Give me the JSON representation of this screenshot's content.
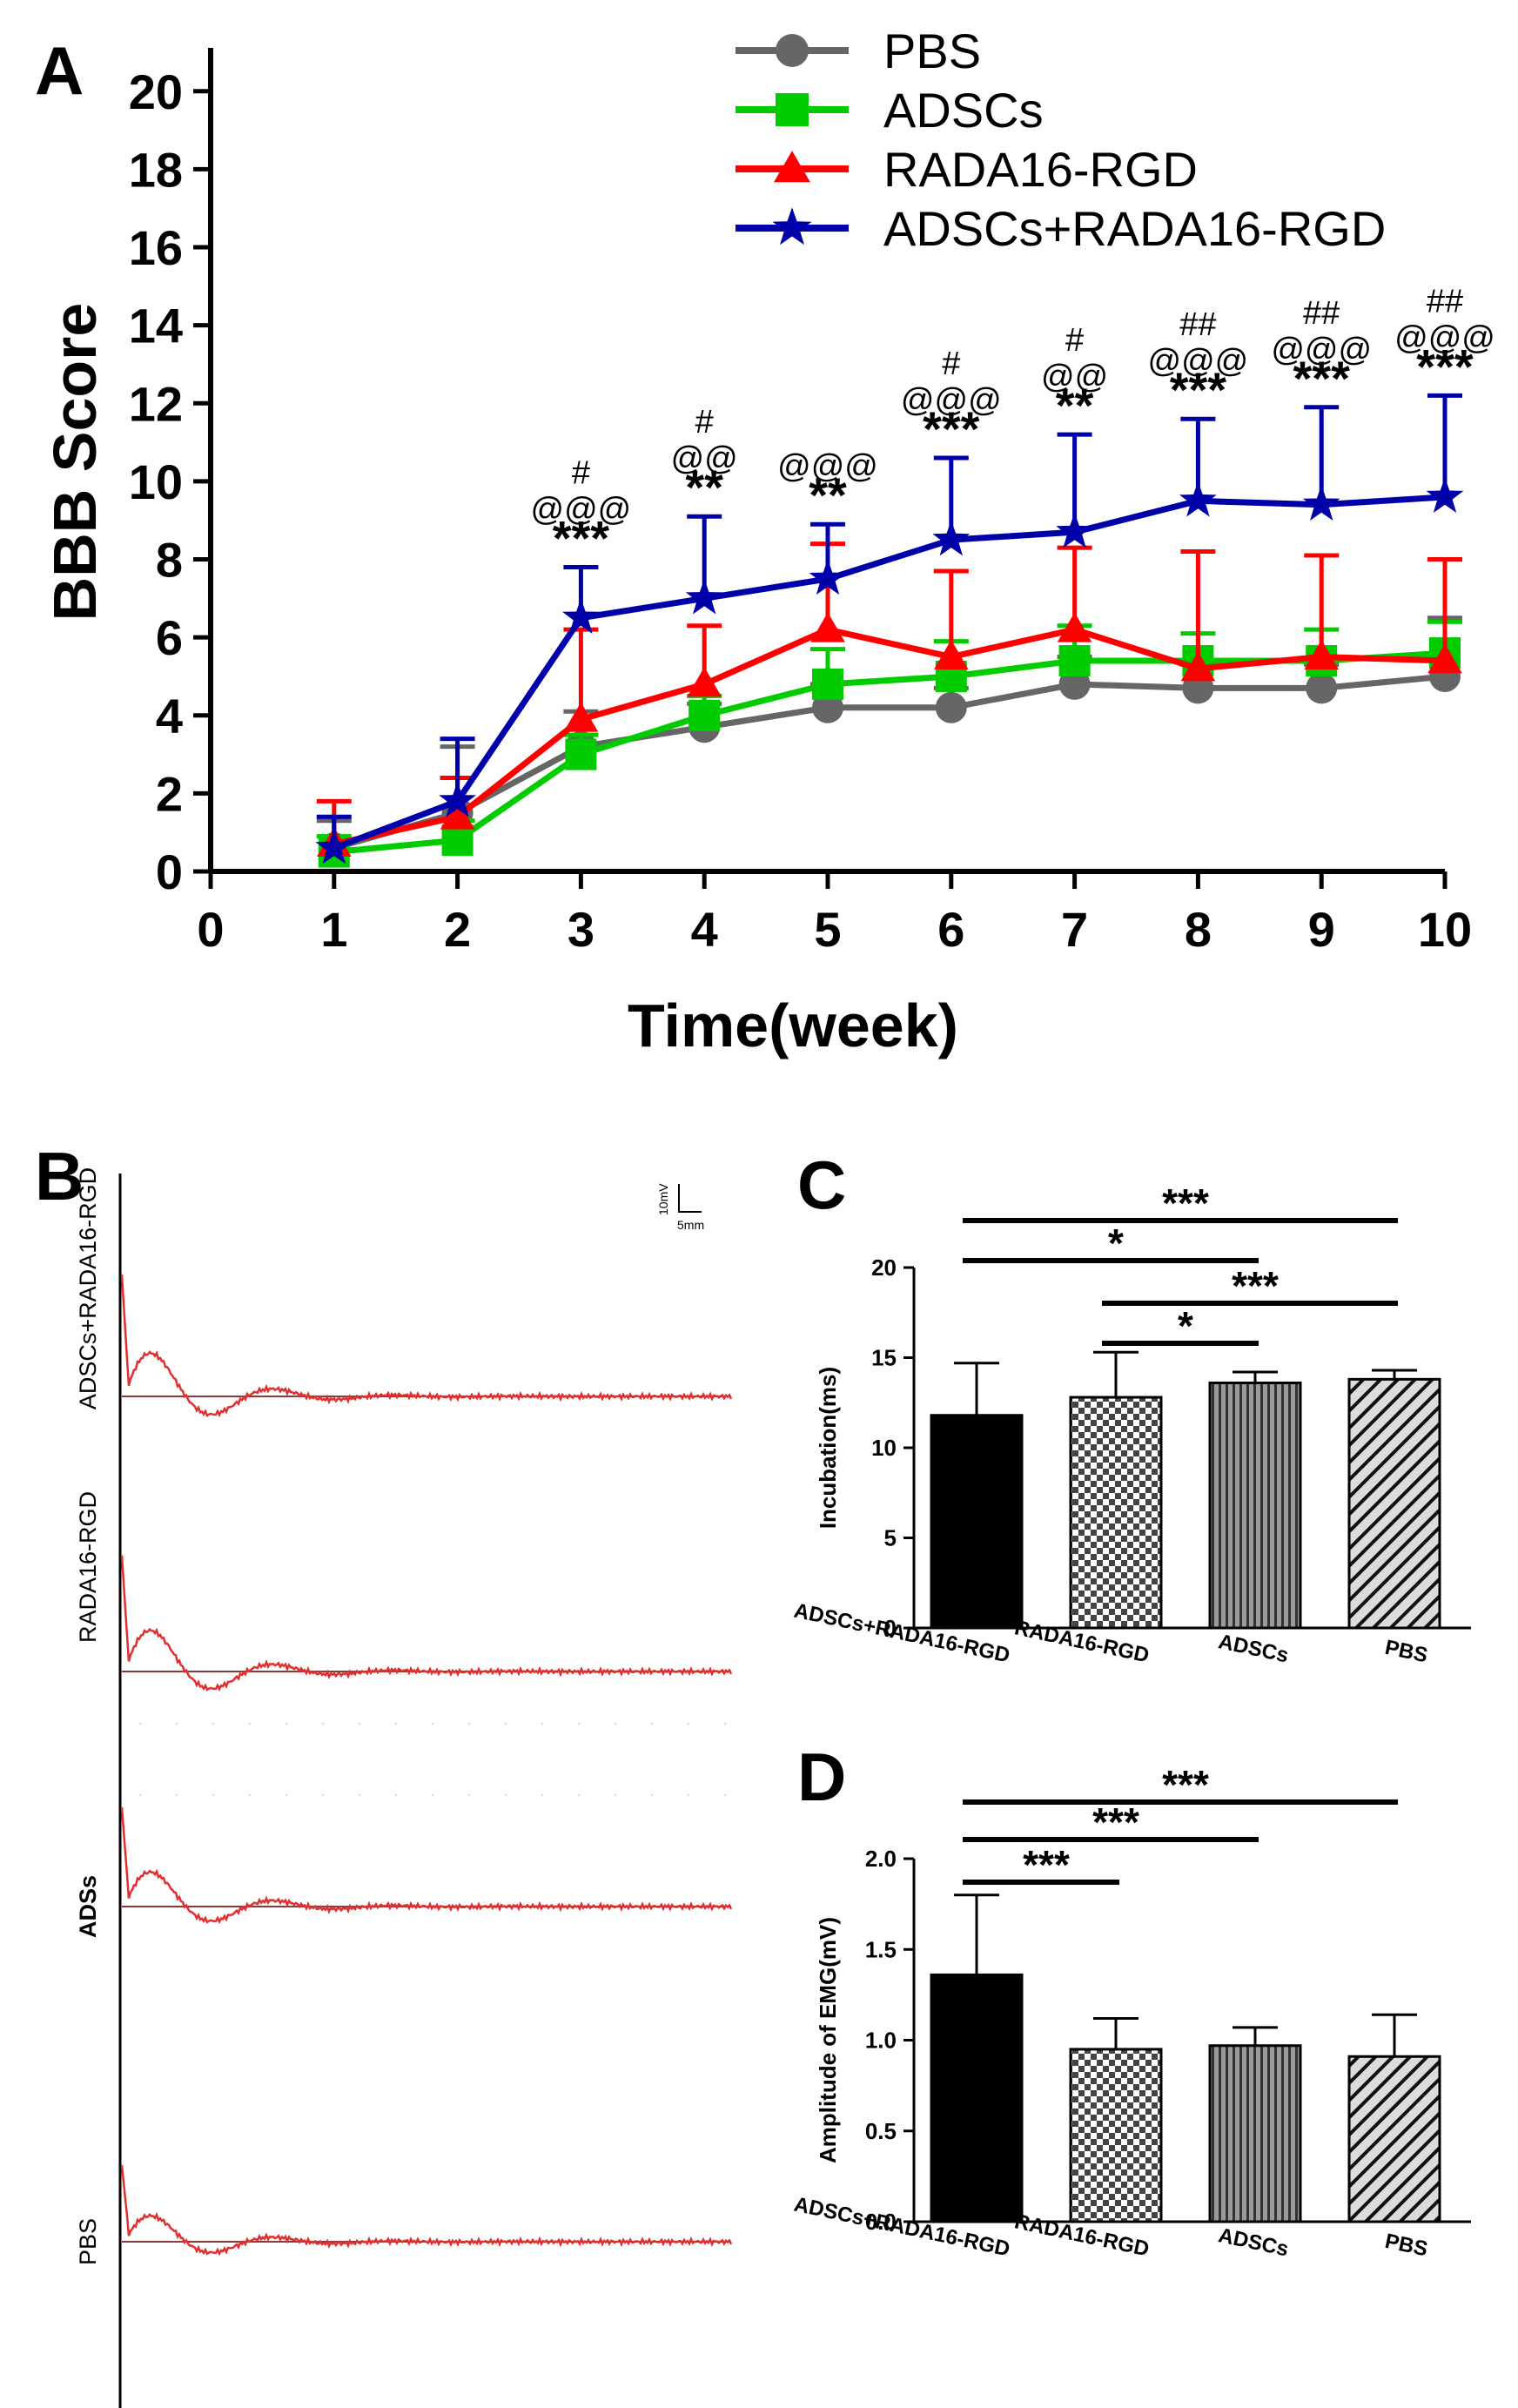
{
  "panels": {
    "A": "A",
    "B": "B",
    "C": "C",
    "D": "D"
  },
  "chart_data": [
    {
      "id": "A",
      "type": "line",
      "xlabel": "Time(week)",
      "ylabel": "BBB Score",
      "xlim": [
        0,
        10
      ],
      "ylim": [
        0,
        21
      ],
      "xticks": [
        "0",
        "1",
        "2",
        "3",
        "4",
        "5",
        "6",
        "7",
        "8",
        "9",
        "10"
      ],
      "yticks": [
        "0",
        "2",
        "4",
        "6",
        "8",
        "10",
        "12",
        "14",
        "16",
        "18",
        "20"
      ],
      "x": [
        1,
        2,
        3,
        4,
        5,
        6,
        7,
        8,
        9,
        10
      ],
      "legend_position": "top-right",
      "series": [
        {
          "name": "PBS",
          "color": "#666666",
          "marker": "circle",
          "values": [
            0.6,
            1.5,
            3.2,
            3.7,
            4.2,
            4.2,
            4.8,
            4.7,
            4.7,
            5.0
          ],
          "err": [
            0.7,
            1.7,
            0.9,
            0.6,
            0.6,
            0.5,
            0.7,
            0.6,
            0.6,
            1.5
          ]
        },
        {
          "name": "ADSCs",
          "color": "#00cc00",
          "marker": "square",
          "values": [
            0.5,
            0.8,
            3.0,
            4.0,
            4.8,
            5.0,
            5.4,
            5.4,
            5.4,
            5.6
          ],
          "err": [
            0.4,
            0.5,
            0.5,
            0.5,
            0.9,
            0.9,
            0.9,
            0.7,
            0.8,
            0.8
          ]
        },
        {
          "name": "RADA16-RGD",
          "color": "#ff0000",
          "marker": "triangle",
          "values": [
            0.7,
            1.4,
            3.9,
            4.8,
            6.2,
            5.5,
            6.2,
            5.2,
            5.5,
            5.4
          ],
          "err": [
            1.1,
            1.0,
            2.3,
            1.5,
            2.2,
            2.2,
            2.1,
            3.0,
            2.6,
            2.6
          ]
        },
        {
          "name": "ADSCs+RADA16-RGD",
          "color": "#0000aa",
          "marker": "star",
          "values": [
            0.6,
            1.8,
            6.5,
            7.0,
            7.5,
            8.5,
            8.7,
            9.5,
            9.4,
            9.6
          ],
          "err": [
            0.8,
            1.6,
            1.3,
            2.1,
            1.4,
            2.1,
            2.5,
            2.1,
            2.5,
            2.6
          ]
        }
      ],
      "annotations": [
        {
          "x": 3,
          "lines": [
            "#",
            "@@@",
            "***"
          ]
        },
        {
          "x": 4,
          "lines": [
            "#",
            "@@",
            "**"
          ]
        },
        {
          "x": 5,
          "lines": [
            "@@@",
            "**"
          ]
        },
        {
          "x": 6,
          "lines": [
            "#",
            "@@@",
            "***"
          ]
        },
        {
          "x": 7,
          "lines": [
            "#",
            "@@",
            "**"
          ]
        },
        {
          "x": 8,
          "lines": [
            "##",
            "@@@",
            "***"
          ]
        },
        {
          "x": 9,
          "lines": [
            "##",
            "@@@",
            "***"
          ]
        },
        {
          "x": 10,
          "lines": [
            "##",
            "@@@",
            "***"
          ]
        }
      ]
    },
    {
      "id": "C",
      "type": "bar",
      "ylabel": "Incubation(ms)",
      "ylim": [
        0,
        20
      ],
      "yticks": [
        "0",
        "5",
        "10",
        "15",
        "20"
      ],
      "categories": [
        "ADSCs+RADA16-RGD",
        "RADA16-RGD",
        "ADSCs",
        "PBS"
      ],
      "values": [
        11.8,
        12.8,
        13.6,
        13.8
      ],
      "err": [
        2.9,
        2.5,
        0.6,
        0.5
      ],
      "brackets": [
        {
          "from": 0,
          "to": 3,
          "label": "***"
        },
        {
          "from": 0,
          "to": 2,
          "label": "*"
        },
        {
          "from": 1,
          "to": 3,
          "label": "***"
        },
        {
          "from": 1,
          "to": 2,
          "label": "*"
        }
      ]
    },
    {
      "id": "D",
      "type": "bar",
      "ylabel": "Amplitude of EMG(mV)",
      "ylim": [
        0,
        2.0
      ],
      "yticks": [
        "0.0",
        "0.5",
        "1.0",
        "1.5",
        "2.0"
      ],
      "categories": [
        "ADSCs+RADA16-RGD",
        "RADA16-RGD",
        "ADSCs",
        "PBS"
      ],
      "values": [
        1.36,
        0.95,
        0.97,
        0.91
      ],
      "err": [
        0.44,
        0.17,
        0.1,
        0.23
      ],
      "brackets": [
        {
          "from": 0,
          "to": 3,
          "label": "***"
        },
        {
          "from": 0,
          "to": 2,
          "label": "***"
        },
        {
          "from": 0,
          "to": 1,
          "label": "***"
        }
      ]
    }
  ],
  "panel_b": {
    "scale_v": "10mV",
    "scale_h": "5mm",
    "traces": [
      {
        "label": "ADSCs+RADA16-RGD",
        "amplitude": 1.0
      },
      {
        "label": "RADA16-RGD",
        "amplitude": 0.95
      },
      {
        "label": "ADSs",
        "amplitude": 0.8
      },
      {
        "label": "PBS",
        "amplitude": 0.6
      }
    ]
  }
}
